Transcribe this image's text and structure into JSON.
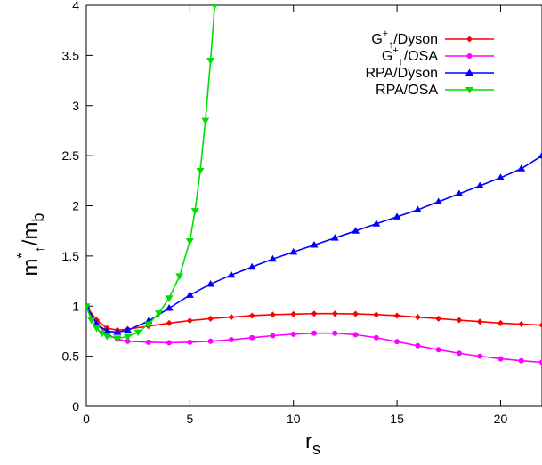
{
  "chart_data": {
    "type": "line",
    "x_axis": {
      "label_main": "r",
      "label_sub": "s",
      "range": [
        0,
        22
      ],
      "ticks": [
        0,
        5,
        10,
        15,
        20
      ],
      "tick_labels": [
        "0",
        "5",
        "10",
        "15",
        "20"
      ]
    },
    "y_axis": {
      "label_main": "m",
      "label_sup": "*",
      "label_sub_arrow": "↑",
      "label_rest": "/m",
      "label_sub": "b",
      "range": [
        0,
        4
      ],
      "ticks": [
        0,
        0.5,
        1,
        1.5,
        2,
        2.5,
        3,
        3.5,
        4
      ],
      "tick_labels": [
        "0",
        "0.5",
        "1",
        "1.5",
        "2",
        "2.5",
        "3",
        "3.5",
        "4"
      ]
    },
    "grid": false,
    "legend_position": "top-right",
    "series": [
      {
        "name": "G+↑/Dyson",
        "legend": {
          "base": "G",
          "sup": "+",
          "sub": "↑",
          "rest": "/Dyson"
        },
        "color": "#ff0000",
        "marker": "diamond",
        "x": [
          0,
          0.5,
          1,
          1.5,
          2,
          3,
          4,
          5,
          6,
          7,
          8,
          9,
          10,
          11,
          12,
          13,
          14,
          15,
          16,
          17,
          18,
          19,
          20,
          21,
          22
        ],
        "y": [
          1.0,
          0.86,
          0.78,
          0.76,
          0.77,
          0.8,
          0.83,
          0.855,
          0.875,
          0.89,
          0.905,
          0.915,
          0.92,
          0.925,
          0.925,
          0.922,
          0.915,
          0.905,
          0.89,
          0.875,
          0.86,
          0.845,
          0.83,
          0.82,
          0.81
        ]
      },
      {
        "name": "G+↑/OSA",
        "legend": {
          "base": "G",
          "sup": "+",
          "sub": "↑",
          "rest": "/OSA"
        },
        "color": "#ff00ff",
        "marker": "circle",
        "x": [
          0,
          0.5,
          1,
          1.5,
          2,
          3,
          4,
          5,
          6,
          7,
          8,
          9,
          10,
          11,
          12,
          13,
          14,
          15,
          16,
          17,
          18,
          19,
          20,
          21,
          22
        ],
        "y": [
          1.0,
          0.82,
          0.72,
          0.67,
          0.65,
          0.64,
          0.635,
          0.64,
          0.65,
          0.665,
          0.685,
          0.705,
          0.72,
          0.73,
          0.73,
          0.715,
          0.685,
          0.645,
          0.605,
          0.565,
          0.53,
          0.5,
          0.475,
          0.455,
          0.44
        ]
      },
      {
        "name": "RPA/Dyson",
        "legend": {
          "base": "RPA",
          "sup": "",
          "sub": "",
          "rest": "/Dyson"
        },
        "color": "#0000ff",
        "marker": "triangle-up",
        "x": [
          0,
          0.5,
          1,
          1.5,
          2,
          3,
          4,
          5,
          6,
          7,
          8,
          9,
          10,
          11,
          12,
          13,
          14,
          15,
          16,
          17,
          18,
          19,
          20,
          21,
          22
        ],
        "y": [
          1.0,
          0.82,
          0.75,
          0.74,
          0.76,
          0.85,
          0.98,
          1.11,
          1.22,
          1.31,
          1.39,
          1.47,
          1.54,
          1.61,
          1.68,
          1.75,
          1.82,
          1.89,
          1.96,
          2.04,
          2.12,
          2.2,
          2.28,
          2.37,
          2.5
        ]
      },
      {
        "name": "RPA/OSA",
        "legend": {
          "base": "RPA",
          "sup": "",
          "sub": "",
          "rest": "/OSA"
        },
        "color": "#00dd00",
        "marker": "triangle-down",
        "x": [
          0,
          0.25,
          0.5,
          0.75,
          1,
          1.5,
          2,
          2.5,
          3,
          3.5,
          4,
          4.5,
          5,
          5.25,
          5.5,
          5.75,
          6,
          6.2
        ],
        "y": [
          1.0,
          0.86,
          0.78,
          0.73,
          0.7,
          0.68,
          0.695,
          0.74,
          0.82,
          0.93,
          1.08,
          1.3,
          1.65,
          1.95,
          2.35,
          2.85,
          3.45,
          4.0
        ]
      }
    ]
  }
}
